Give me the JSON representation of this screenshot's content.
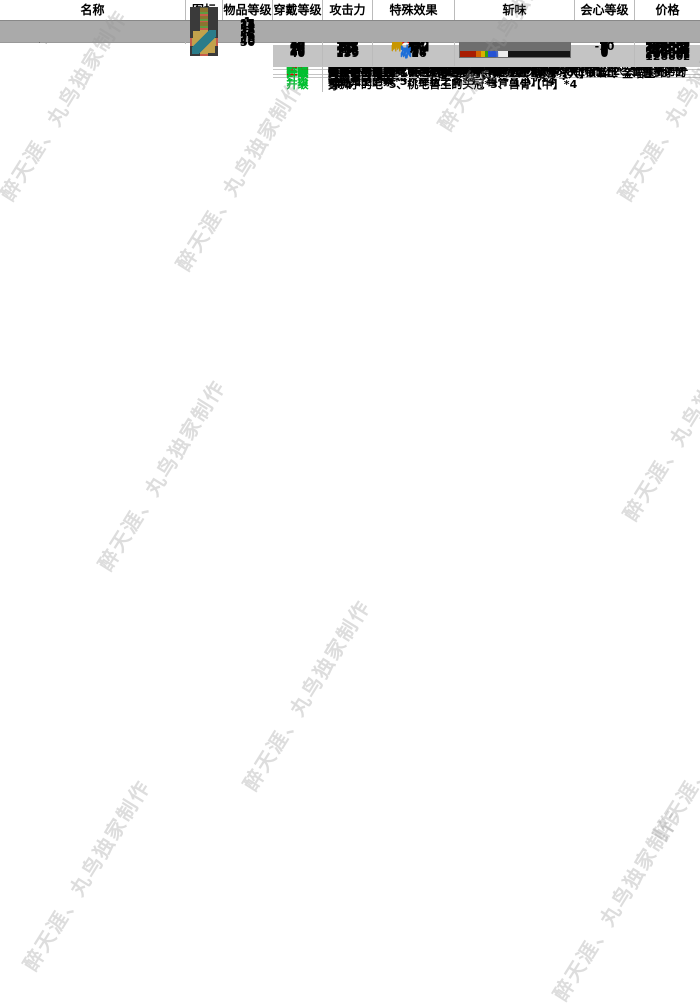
{
  "header": {
    "columns": [
      "名称",
      "图标",
      "物品等级",
      "穿戴等级",
      "攻击力",
      "特殊效果",
      "斩味",
      "会心等级",
      "价格"
    ]
  },
  "watermark": {
    "text": "醉天涯、丸鸟独家制作"
  },
  "palette": {
    "sharpness": {
      "red": "#a81c00",
      "orange": "#d46400",
      "yellow": "#d8b000",
      "green": "#32a00a",
      "blue": "#2653d4",
      "white": "#ececec"
    },
    "labels": {
      "生产": "#e00000",
      "升级": "#00c030"
    },
    "elements": {
      "火": "#e00000",
      "麻": "#c89600",
      "冰": "#1e6fd8",
      "无": "#000000"
    }
  },
  "weapons": [
    {
      "prefix": "",
      "below": "│",
      "name": "月牙骨刀",
      "icon": {
        "frame": "#55543e",
        "bg": "#6d6b4e",
        "blade": "#d8c87a",
        "shape": "blade"
      },
      "item_level": "1",
      "wear_level": "1",
      "attack": "42",
      "effect": {
        "elem": "无",
        "value": ""
      },
      "sharpness": [
        [
          "red",
          26
        ],
        [
          "orange",
          7
        ]
      ],
      "affinity": "0",
      "price": [
        "20z"
      ],
      "materials": [
        {
          "label": "生产",
          "text": "龙骨【小】*6、棒状之骨*4、兽骨【小】*5"
        }
      ]
    },
    {
      "prefix": "├",
      "below": "││",
      "name": "骨牙刀",
      "icon": {
        "frame": "#8a7430",
        "bg": "#c2a24c",
        "blade": "#2e4440",
        "shape": "blade"
      },
      "item_level": "1",
      "wear_level": "1",
      "attack": "51",
      "effect": {
        "elem": "无",
        "value": ""
      },
      "sharpness": [
        [
          "red",
          24
        ],
        [
          "orange",
          8
        ],
        [
          "yellow",
          3
        ]
      ],
      "affinity": "-7",
      "price": [
        "500z",
        "400z"
      ],
      "materials": [
        {
          "label": "生产",
          "text": "蓝速龙王的皮*6、蓝速龙王的爪*4、龙骨【小】*5"
        },
        {
          "label": "升级",
          "text": "蓝速龙王的皮*5、棒状之骨*3、龙骨【小】*4"
        }
      ]
    },
    {
      "prefix": "│└",
      "below": "│ │",
      "name": "鱼鳍太刀",
      "icon": {
        "frame": "#8a7430",
        "bg": "#c2a24c",
        "blade": "#5a4a16",
        "shape": "blade"
      },
      "item_level": "15",
      "wear_level": "15",
      "attack": "80",
      "effect": {
        "elem": "无",
        "value": ""
      },
      "sharpness": [
        [
          "red",
          22
        ],
        [
          "orange",
          8
        ],
        [
          "yellow",
          6
        ]
      ],
      "affinity": "-7",
      "price": [
        "1680z"
      ],
      "materials": [
        {
          "label": "升级",
          "text": "沙龙王的储砂袋*5、蓝速龙王的爪*3、兽骨【小】*4"
        }
      ]
    },
    {
      "prefix": "│ └",
      "below": "│  │",
      "name": "坚岩斩",
      "icon": {
        "frame": "#8a7430",
        "bg": "#c2a24c",
        "blade": "#7d93a6",
        "shape": "blade"
      },
      "item_level": "25",
      "wear_level": "25",
      "attack": "99",
      "effect": {
        "elem": "无",
        "value": ""
      },
      "sharpness": [
        [
          "red",
          16
        ],
        [
          "orange",
          6
        ],
        [
          "yellow",
          8
        ],
        [
          "green",
          8
        ]
      ],
      "affinity": "-10",
      "price": [
        "5600z",
        "4480z"
      ],
      "materials": [
        {
          "label": "生产",
          "text": "岩龙的甲壳*6、岩龙的尾巴*4、兽骨【中】*5"
        },
        {
          "label": "升级",
          "text": "岩龙的甲壳*5、弯月之头冠*3、兽骨【中】*4"
        }
      ]
    },
    {
      "prefix": "│  └",
      "below": "│   │",
      "name": "坚岩斩改",
      "icon": {
        "frame": "#8a7430",
        "bg": "#c2a24c",
        "blade": "#7d93a6",
        "shape": "blade"
      },
      "item_level": "35",
      "wear_level": "35",
      "attack": "120",
      "effect": {
        "elem": "无",
        "value": ""
      },
      "sharpness": [
        [
          "red",
          14
        ],
        [
          "orange",
          6
        ],
        [
          "yellow",
          6
        ],
        [
          "green",
          10
        ],
        [
          "blue",
          8
        ]
      ],
      "affinity": "-10",
      "price": [
        "12880z"
      ],
      "materials": [
        {
          "label": "升级",
          "text": "岩龙的甲壳*5、龙头壳*3、兽骨【中】*4"
        }
      ]
    },
    {
      "prefix": "│   └",
      "below": "│    │",
      "name": "岩斩匠锻",
      "icon": {
        "frame": "#5f9b40",
        "bg": "#c2a24c",
        "blade": "#7d93a6",
        "shape": "blade"
      },
      "item_level": "40",
      "wear_level": "40",
      "attack": "137",
      "effect": {
        "elem": "无",
        "value": ""
      },
      "sharpness": [
        [
          "red",
          14
        ],
        [
          "orange",
          8
        ],
        [
          "yellow",
          6
        ],
        [
          "green",
          10
        ],
        [
          "blue",
          8
        ]
      ],
      "affinity": "-15",
      "price": [
        "22400z"
      ],
      "materials": [
        {
          "label": "升级",
          "text": "黄速龙王的优质皮*10、黄速龙王的大头冠*7、兽骨【大】*8、银喵玉*2、岩龙的尾巴*4"
        }
      ]
    },
    {
      "prefix": "│    └",
      "below": "│     │",
      "name": "岩斩宗匠锻",
      "icon": {
        "frame": "#5f9b40",
        "bg": "#c2a24c",
        "blade": "#7d93a6",
        "shape": "blade"
      },
      "item_level": "45",
      "wear_level": "40",
      "attack": "150",
      "effect": {
        "elem": "无",
        "value": ""
      },
      "sharpness": [
        [
          "red",
          12
        ],
        [
          "orange",
          6
        ],
        [
          "yellow",
          6
        ],
        [
          "green",
          16
        ],
        [
          "blue",
          8
        ],
        [
          "white",
          8
        ]
      ],
      "affinity": "-15",
      "price": [
        "22400z"
      ],
      "materials": [
        {
          "label": "升级",
          "text": "眠鸟的橙羽毛*10、眠鸟的牙喙*7、龙骨【大】*8、银喵玉*2、岩龙的尾巴*4"
        }
      ]
    },
    {
      "prefix": "│     ├",
      "below": "│     │",
      "name": "岩斩=晶断激突",
      "icon": {
        "frame": "#c75b4a",
        "bg": "#c2a24c",
        "blade": "#4a70c8",
        "shape": "blade"
      },
      "item_level": "50",
      "wear_level": "40",
      "attack": "137",
      "effect": {
        "elem": "火",
        "value": "36"
      },
      "sharpness": [
        [
          "red",
          12
        ],
        [
          "orange",
          6
        ],
        [
          "yellow",
          4
        ],
        [
          "green",
          2
        ],
        [
          "blue",
          14
        ],
        [
          "white",
          10
        ]
      ],
      "affinity": "-20",
      "price": [
        "24000z"
      ],
      "materials": [
        {
          "label": "升级",
          "text": "晶岩龙的坚甲*17、晶岩龙的韧尾*11、龙骨【大】*14、金喵玉*3"
        }
      ]
    },
    {
      "prefix": "│     └",
      "below": "│",
      "name": "残阳勋爵",
      "icon": {
        "frame": "#c75b4a",
        "bg": "#c2a24c",
        "blade": "#a04a22",
        "shape": "blade"
      },
      "item_level": "55",
      "wear_level": "40",
      "attack": "195",
      "effect": {
        "elem": "无",
        "value": ""
      },
      "sharpness": [
        [
          "red",
          14
        ],
        [
          "orange",
          6
        ],
        [
          "yellow",
          4
        ],
        [
          "green",
          8
        ],
        [
          "blue",
          6
        ],
        [
          "white",
          10
        ]
      ],
      "affinity": "-24",
      "price": [
        "24000z"
      ],
      "materials": [
        {
          "label": "升级",
          "text": "一角龙的坚甲*17、真红刚角*11、兽骨【大】*14、金喵玉*3"
        }
      ]
    },
    {
      "prefix": "├",
      "below": "││",
      "name": "角蝰刀",
      "icon": {
        "frame": "#8a7430",
        "bg": "#c2a24c",
        "blade": "#8a7a22",
        "shape": "blade"
      },
      "item_level": "5",
      "wear_level": "5",
      "attack": "41",
      "effect": {
        "elem": "麻",
        "value": "【小】"
      },
      "sharpness": [
        [
          "red",
          24
        ],
        [
          "orange",
          8
        ],
        [
          "yellow",
          5
        ]
      ],
      "affinity": "0",
      "price": [
        "640z"
      ],
      "materials": [
        {
          "label": "升级",
          "text": "黄速龙王的皮*5、棒状之骨*3、兽骨【小】*4"
        }
      ]
    },
    {
      "prefix": "│└",
      "below": "│ │",
      "name": "鸣沙太刀",
      "icon": {
        "frame": "#8a7430",
        "bg": "#c2a24c",
        "blade": "#6e7a1e",
        "shape": "blade"
      },
      "item_level": "15",
      "wear_level": "15",
      "attack": "58",
      "effect": {
        "elem": "麻",
        "value": "【中】"
      },
      "sharpness": [
        [
          "red",
          20
        ],
        [
          "orange",
          8
        ],
        [
          "yellow",
          4
        ],
        [
          "green",
          5
        ]
      ],
      "affinity": "0",
      "price": [
        "2100z",
        "1680z"
      ],
      "materials": [
        {
          "label": "生产",
          "text": "绿色的粘液*6、沙雷鸟的嗉囊*4、龙骨【小】*5"
        },
        {
          "label": "升级",
          "text": "绿色的粘液*5、黄速龙王头冠*3、龙骨【小】*4"
        }
      ]
    },
    {
      "prefix": "│ └",
      "below": "│  │",
      "name": "鸣沙太刀改",
      "icon": {
        "frame": "#8a7430",
        "bg": "#c2a24c",
        "blade": "#6e7a1e",
        "shape": "blade"
      },
      "item_level": "30",
      "wear_level": "30",
      "attack": "84",
      "effect": {
        "elem": "麻",
        "value": "【中】"
      },
      "sharpness": [
        [
          "red",
          16
        ],
        [
          "orange",
          6
        ],
        [
          "yellow",
          5
        ],
        [
          "green",
          8
        ],
        [
          "blue",
          8
        ]
      ],
      "affinity": "0",
      "price": [
        "7520z"
      ],
      "materials": [
        {
          "label": "升级",
          "text": "绿色的粘液*5、骇狩蛛的盾爪壳*3、龙骨【中】*4"
        }
      ]
    },
    {
      "prefix": "│  └",
      "below": "│   │",
      "name": "沙雷刀·恸鸣",
      "icon": {
        "frame": "#5f9b40",
        "bg": "#c2a24c",
        "blade": "#6e7a1e",
        "shape": "blade"
      },
      "item_level": "40",
      "wear_level": "40",
      "attack": "102",
      "effect": {
        "elem": "麻",
        "value": "【中】"
      },
      "sharpness": [
        [
          "red",
          16
        ],
        [
          "orange",
          6
        ],
        [
          "yellow",
          5
        ],
        [
          "green",
          8
        ],
        [
          "blue",
          8
        ]
      ],
      "affinity": "0",
      "price": [
        "22400z"
      ],
      "materials": [
        {
          "label": "升级",
          "text": "沙龙王的大储砂袋*10、新月之头冠*7、兽骨【大】*8、银喵玉*2、沙雷鸟的嗉囊*4"
        }
      ]
    },
    {
      "prefix": "│   └",
      "below": "│    │",
      "name": "沙雷刀·落曜",
      "icon": {
        "frame": "#5f9b40",
        "bg": "#c2a24c",
        "blade": "#6e7a1e",
        "shape": "blade"
      },
      "item_level": "45",
      "wear_level": "40",
      "attack": "112",
      "effect": {
        "elem": "麻",
        "value": "【大】"
      },
      "sharpness": [
        [
          "red",
          14
        ],
        [
          "orange",
          6
        ],
        [
          "yellow",
          5
        ],
        [
          "green",
          8
        ],
        [
          "blue",
          8
        ],
        [
          "white",
          8
        ]
      ],
      "affinity": "0",
      "price": [
        "22400z"
      ],
      "materials": [
        {
          "label": "升级",
          "text": "金毛兽王的坚骨*10、金毛兽王优质头皮*7、兽骨【大】*8、银喵玉*2、沙雷鸟的嗉囊*4"
        }
      ]
    },
    {
      "prefix": "│    └",
      "below": "│",
      "name": "泣血鬼丸",
      "icon": {
        "frame": "#c75b4a",
        "bg": "#c2a24c",
        "blade": "#6a2014",
        "shape": "blade"
      },
      "item_level": "55",
      "wear_level": "40",
      "attack": "141",
      "effect": {
        "elem": "麻",
        "value": "【大】"
      },
      "sharpness": [
        [
          "red",
          14
        ],
        [
          "orange",
          5
        ],
        [
          "yellow",
          4
        ],
        [
          "green",
          8
        ],
        [
          "blue",
          8
        ],
        [
          "white",
          8
        ]
      ],
      "affinity": "-10",
      "price": [
        "24000z"
      ],
      "materials": [
        {
          "label": "升级",
          "text": "断刃一角龙的坚甲*17、断刃一角龙的韧尾*11、兽骨【大】*14、金喵玉*3"
        }
      ]
    },
    {
      "prefix": "└",
      "below": " │",
      "name": "巨骨刀",
      "icon": {
        "frame": "#8a7430",
        "bg": "#c2a24c",
        "blade": "#c8b060",
        "shape": "blade"
      },
      "item_level": "1",
      "wear_level": "1",
      "attack": "50",
      "effect": {
        "elem": "无",
        "value": ""
      },
      "sharpness": [
        [
          "red",
          26
        ],
        [
          "orange",
          8
        ]
      ],
      "affinity": "0",
      "price": [
        "500z",
        "400z"
      ],
      "materials": [
        {
          "label": "生产",
          "text": "大野猪王的鬃*6、大野猪王的牙*4、兽骨【小】*5"
        },
        {
          "label": "升级",
          "text": "大野猪王的鬃*5、棒状之骨*3、兽骨【小】*4"
        }
      ]
    },
    {
      "prefix": " └",
      "below": "  │",
      "name": "喧哗之刃",
      "icon": {
        "frame": "#8a7430",
        "bg": "#c2a24c",
        "blade": "#8a3c8a",
        "shape": "blade"
      },
      "item_level": "10",
      "wear_level": "10",
      "attack": "72",
      "effect": {
        "elem": "无",
        "value": ""
      },
      "sharpness": [
        [
          "red",
          22
        ],
        [
          "orange",
          8
        ],
        [
          "yellow",
          6
        ]
      ],
      "affinity": "0",
      "price": [
        "1040z"
      ],
      "materials": [
        {
          "label": "升级",
          "text": "桃毛兽王的大骨*5、大野猪王的牙*3、兽骨【小】*4"
        }
      ]
    },
    {
      "prefix": "  └",
      "below": "   │",
      "name": "喧哗之刃改",
      "icon": {
        "frame": "#8a7430",
        "bg": "#c2a24c",
        "blade": "#8a3c8a",
        "shape": "blade"
      },
      "item_level": "20",
      "wear_level": "20",
      "attack": "87",
      "effect": {
        "elem": "无",
        "value": ""
      },
      "sharpness": [
        [
          "red",
          18
        ],
        [
          "orange",
          6
        ],
        [
          "yellow",
          6
        ],
        [
          "green",
          8
        ]
      ],
      "affinity": "0",
      "price": [
        "2720z"
      ],
      "materials": [
        {
          "label": "升级",
          "text": "桃毛兽王的大骨*5、青怪鸟的耳*3、兽骨【中】*4"
        }
      ]
    },
    {
      "prefix": "   └",
      "below": "    │",
      "name": "白猿薙",
      "icon": {
        "frame": "#8a7430",
        "bg": "#c2a24c",
        "blade": "#46305a",
        "shape": "ball"
      },
      "item_level": "35",
      "wear_level": "35",
      "attack": "104",
      "effect": {
        "elem": "冰",
        "value": "20"
      },
      "sharpness": [
        [
          "red",
          16
        ],
        [
          "orange",
          6
        ],
        [
          "yellow",
          5
        ],
        [
          "green",
          8
        ],
        [
          "blue",
          8
        ]
      ],
      "affinity": "0",
      "price": [
        "16100z",
        "12880z"
      ],
      "materials": [
        {
          "label": "生产",
          "text": "雪狮子的毛*6、雪狮子的牙*4、兽骨【中】*5"
        },
        {
          "label": "升级",
          "text": "雪狮子的毛*5、桃毛兽王的头冠*3、兽骨【中】*4"
        }
      ]
    },
    {
      "prefix": "    └",
      "below": "     │",
      "name": "白猿薙改",
      "icon": {
        "frame": "#5f9b40",
        "bg": "#c2a24c",
        "blade": "#46305a",
        "shape": "ball"
      },
      "item_level": "40",
      "wear_level": "40",
      "attack": "115",
      "effect": {
        "elem": "冰",
        "value": "22"
      },
      "sharpness": [
        [
          "red",
          16
        ],
        [
          "orange",
          6
        ],
        [
          "yellow",
          5
        ],
        [
          "green",
          7
        ],
        [
          "blue",
          9
        ]
      ],
      "affinity": "0",
      "price": [
        "22400z"
      ],
      "materials": [
        {
          "label": "升级",
          "text": "优质的毛皮*10、历战的门牙*7、兽骨【大】*8、银喵玉*2、雪狮子的牙*4"
        }
      ]
    },
    {
      "prefix": "     └",
      "below": "      │",
      "name": "白猿薙【极光】",
      "icon": {
        "frame": "#5f9b40",
        "bg": "#c2a24c",
        "blade": "#46305a",
        "shape": "ball"
      },
      "item_level": "45",
      "wear_level": "40",
      "attack": "126",
      "effect": {
        "elem": "冰",
        "value": "24"
      },
      "sharpness": [
        [
          "red",
          14
        ],
        [
          "orange",
          6
        ],
        [
          "yellow",
          5
        ],
        [
          "green",
          6
        ],
        [
          "blue",
          8
        ],
        [
          "white",
          9
        ]
      ],
      "affinity": "0",
      "price": [
        "22400z"
      ],
      "materials": [
        {
          "label": "升级",
          "text": "高压的电气袋*10、白化霜降肉*7、龙骨【大】*8、银喵玉*2、雪狮子的牙*4"
        }
      ]
    },
    {
      "prefix": "      └",
      "below": "",
      "name": "极寒太刀【砂冲】",
      "icon": {
        "frame": "#c75b4a",
        "bg": "#c2a24c",
        "blade": "#2a7c8a",
        "shape": "blade"
      },
      "item_level": "50",
      "wear_level": "40",
      "attack": "139",
      "effect": {
        "elem": "冰",
        "value": "26"
      },
      "sharpness": [
        [
          "red",
          16
        ],
        [
          "orange",
          5
        ],
        [
          "yellow",
          4
        ],
        [
          "green",
          3
        ],
        [
          "blue",
          10
        ],
        [
          "white",
          10
        ]
      ],
      "affinity": "0",
      "price": [
        "24000z"
      ],
      "materials": [
        {
          "label": "升级",
          "text": "亮蓝色的粘液*17、冰雷鸟的苍白鼻*11、兽骨【大】*14、金喵玉*3"
        }
      ]
    }
  ]
}
